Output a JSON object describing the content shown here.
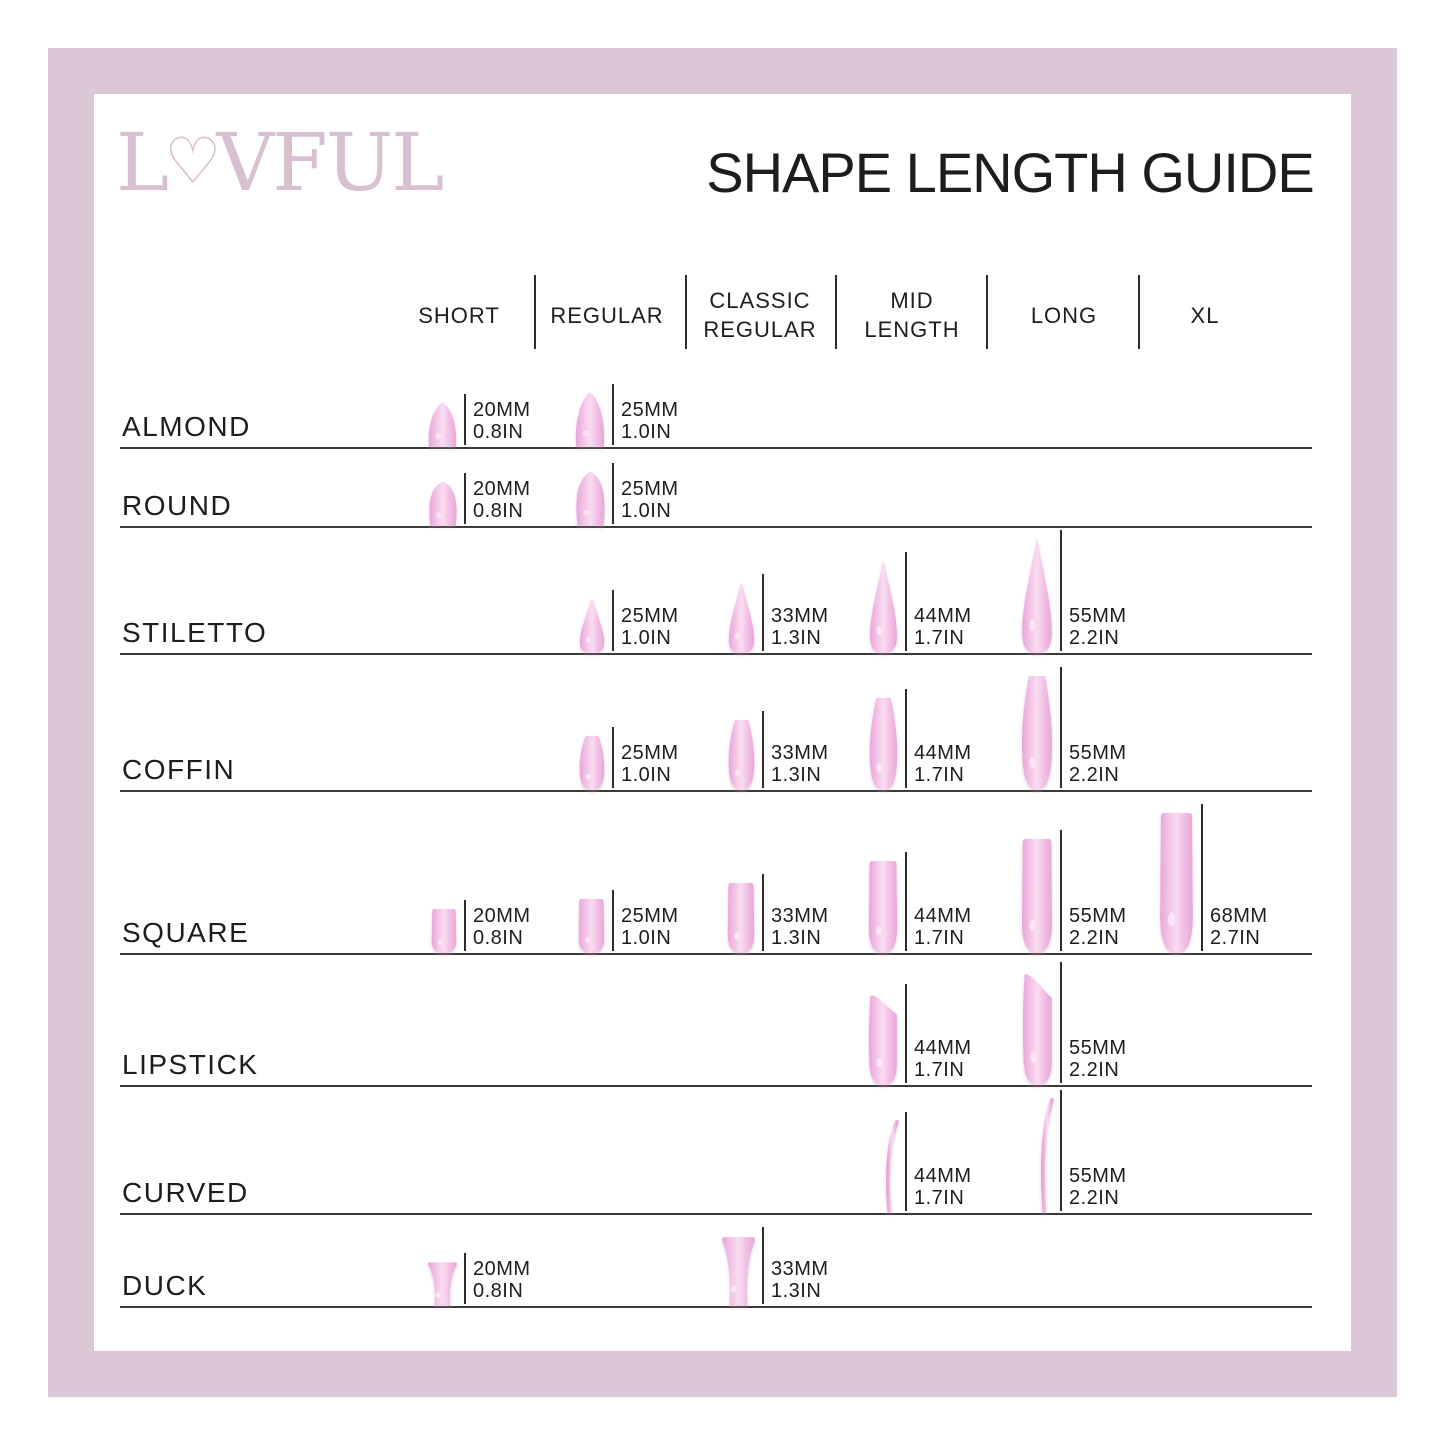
{
  "brand": {
    "name": "LOVFUL",
    "logo_prefix": "L",
    "logo_heart": "♡",
    "logo_suffix": "VFUL"
  },
  "title": "SHAPE LENGTH GUIDE",
  "columns": [
    {
      "id": "short",
      "lines": [
        "SHORT"
      ]
    },
    {
      "id": "regular",
      "lines": [
        "REGULAR"
      ]
    },
    {
      "id": "classic-regular",
      "lines": [
        "CLASSIC",
        "REGULAR"
      ]
    },
    {
      "id": "mid-length",
      "lines": [
        "MID",
        "LENGTH"
      ]
    },
    {
      "id": "long",
      "lines": [
        "LONG"
      ]
    },
    {
      "id": "xl",
      "lines": [
        "XL"
      ]
    }
  ],
  "rows": [
    {
      "id": "almond",
      "label": "ALMOND",
      "shape": "almond",
      "cells": [
        {
          "column": "SHORT",
          "col": 0,
          "mm": "20MM",
          "inch": "0.8IN",
          "mm_value": 20
        },
        {
          "column": "REGULAR",
          "col": 1,
          "mm": "25MM",
          "inch": "1.0IN",
          "mm_value": 25
        }
      ]
    },
    {
      "id": "round",
      "label": "ROUND",
      "shape": "round",
      "cells": [
        {
          "column": "SHORT",
          "col": 0,
          "mm": "20MM",
          "inch": "0.8IN",
          "mm_value": 20
        },
        {
          "column": "REGULAR",
          "col": 1,
          "mm": "25MM",
          "inch": "1.0IN",
          "mm_value": 25
        }
      ]
    },
    {
      "id": "stiletto",
      "label": "STILETTO",
      "shape": "stiletto",
      "cells": [
        {
          "column": "REGULAR",
          "col": 1,
          "mm": "25MM",
          "inch": "1.0IN",
          "mm_value": 25
        },
        {
          "column": "CLASSIC REGULAR",
          "col": 2,
          "mm": "33MM",
          "inch": "1.3IN",
          "mm_value": 33
        },
        {
          "column": "MID LENGTH",
          "col": 3,
          "mm": "44MM",
          "inch": "1.7IN",
          "mm_value": 44
        },
        {
          "column": "LONG",
          "col": 4,
          "mm": "55MM",
          "inch": "2.2IN",
          "mm_value": 55
        }
      ]
    },
    {
      "id": "coffin",
      "label": "COFFIN",
      "shape": "coffin",
      "cells": [
        {
          "column": "REGULAR",
          "col": 1,
          "mm": "25MM",
          "inch": "1.0IN",
          "mm_value": 25
        },
        {
          "column": "CLASSIC REGULAR",
          "col": 2,
          "mm": "33MM",
          "inch": "1.3IN",
          "mm_value": 33
        },
        {
          "column": "MID LENGTH",
          "col": 3,
          "mm": "44MM",
          "inch": "1.7IN",
          "mm_value": 44
        },
        {
          "column": "LONG",
          "col": 4,
          "mm": "55MM",
          "inch": "2.2IN",
          "mm_value": 55
        }
      ]
    },
    {
      "id": "square",
      "label": "SQUARE",
      "shape": "square",
      "cells": [
        {
          "column": "SHORT",
          "col": 0,
          "mm": "20MM",
          "inch": "0.8IN",
          "mm_value": 20
        },
        {
          "column": "REGULAR",
          "col": 1,
          "mm": "25MM",
          "inch": "1.0IN",
          "mm_value": 25
        },
        {
          "column": "CLASSIC REGULAR",
          "col": 2,
          "mm": "33MM",
          "inch": "1.3IN",
          "mm_value": 33
        },
        {
          "column": "MID LENGTH",
          "col": 3,
          "mm": "44MM",
          "inch": "1.7IN",
          "mm_value": 44
        },
        {
          "column": "LONG",
          "col": 4,
          "mm": "55MM",
          "inch": "2.2IN",
          "mm_value": 55
        },
        {
          "column": "XL",
          "col": 5,
          "mm": "68MM",
          "inch": "2.7IN",
          "mm_value": 68
        }
      ]
    },
    {
      "id": "lipstick",
      "label": "LIPSTICK",
      "shape": "lipstick",
      "cells": [
        {
          "column": "MID LENGTH",
          "col": 3,
          "mm": "44MM",
          "inch": "1.7IN",
          "mm_value": 44
        },
        {
          "column": "LONG",
          "col": 4,
          "mm": "55MM",
          "inch": "2.2IN",
          "mm_value": 55
        }
      ]
    },
    {
      "id": "curved",
      "label": "CURVED",
      "shape": "curved",
      "cells": [
        {
          "column": "MID LENGTH",
          "col": 3,
          "mm": "44MM",
          "inch": "1.7IN",
          "mm_value": 44
        },
        {
          "column": "LONG",
          "col": 4,
          "mm": "55MM",
          "inch": "2.2IN",
          "mm_value": 55
        }
      ]
    },
    {
      "id": "duck",
      "label": "DUCK",
      "shape": "duck",
      "cells": [
        {
          "column": "SHORT",
          "col": 0,
          "mm": "20MM",
          "inch": "0.8IN",
          "mm_value": 20
        },
        {
          "column": "CLASSIC REGULAR",
          "col": 2,
          "mm": "33MM",
          "inch": "1.3IN",
          "mm_value": 33
        }
      ]
    }
  ],
  "colors": {
    "frame": "#dcc7d7",
    "nail_edge": "#e9a6d8",
    "nail_mid": "#f2c2e6",
    "nail_highlight": "#f9dcf1",
    "text": "#1d1d1b",
    "logo": "#d8c0d1",
    "line": "#2c2c2c"
  }
}
